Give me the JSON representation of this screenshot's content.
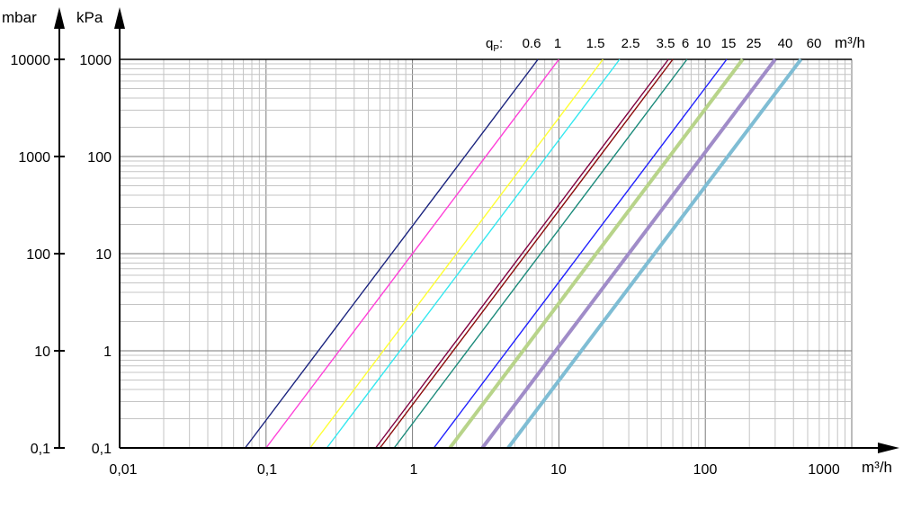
{
  "chart_data": {
    "type": "line",
    "x_axis": {
      "label": "m³/h",
      "scale": "log",
      "range": [
        0.01,
        1000
      ],
      "tick_labels": [
        "0,01",
        "0,1",
        "1",
        "10",
        "100",
        "1000"
      ]
    },
    "y_axis_left_mbar": {
      "label": "mbar",
      "scale": "log",
      "range": [
        0.1,
        10000
      ],
      "tick_labels": [
        "0,1",
        "10",
        "100",
        "1000",
        "10000"
      ]
    },
    "y_axis_right_kpa": {
      "label": "kPa",
      "scale": "log",
      "range": [
        0.1,
        1000
      ],
      "tick_labels": [
        "0,1",
        "1",
        "10",
        "100",
        "1000"
      ]
    },
    "grid": true,
    "legend_prefix": "qp:",
    "series": [
      {
        "name": "0.6",
        "color": "#1a237e",
        "bold": false,
        "points": [
          [
            0.072,
            0.1
          ],
          [
            7.2,
            1000
          ]
        ]
      },
      {
        "name": "1",
        "color": "#ff3fd8",
        "bold": false,
        "points": [
          [
            0.1,
            0.1
          ],
          [
            10,
            1000
          ]
        ]
      },
      {
        "name": "1.5",
        "color": "#ffff33",
        "bold": false,
        "points": [
          [
            0.2,
            0.1
          ],
          [
            20,
            1000
          ]
        ]
      },
      {
        "name": "2.5",
        "color": "#33e8f0",
        "bold": false,
        "points": [
          [
            0.26,
            0.1
          ],
          [
            26,
            1000
          ]
        ]
      },
      {
        "name": "3.5",
        "color": "#800040",
        "bold": false,
        "points": [
          [
            0.56,
            0.1
          ],
          [
            56,
            1000
          ]
        ]
      },
      {
        "name": "6",
        "color": "#8b0a0a",
        "bold": false,
        "points": [
          [
            0.6,
            0.1
          ],
          [
            60,
            1000
          ]
        ]
      },
      {
        "name": "10",
        "color": "#1a8a7a",
        "bold": false,
        "points": [
          [
            0.75,
            0.1
          ],
          [
            75,
            1000
          ]
        ]
      },
      {
        "name": "15",
        "color": "#1f1fff",
        "bold": false,
        "points": [
          [
            1.4,
            0.1
          ],
          [
            140,
            1000
          ]
        ]
      },
      {
        "name": "25",
        "color": "#b8d48a",
        "bold": true,
        "points": [
          [
            1.8,
            0.1
          ],
          [
            180,
            1000
          ]
        ]
      },
      {
        "name": "40",
        "color": "#a08cc8",
        "bold": true,
        "points": [
          [
            3.0,
            0.1
          ],
          [
            300,
            1000
          ]
        ]
      },
      {
        "name": "60",
        "color": "#7fbdd4",
        "bold": true,
        "points": [
          [
            4.5,
            0.1
          ],
          [
            450,
            1000
          ]
        ]
      }
    ]
  }
}
